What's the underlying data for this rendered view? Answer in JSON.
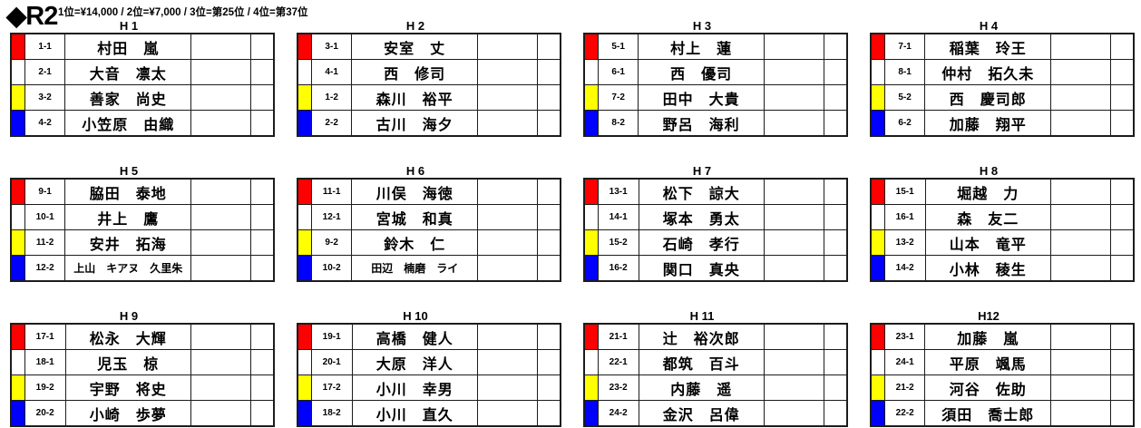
{
  "title": "◆R2",
  "prize_text": "1位=¥14,000 / 2位=¥7,000 / 3位=第25位 / 4位=第37位",
  "colors": {
    "red": "#ff0000",
    "white": "#ffffff",
    "yellow": "#ffff00",
    "blue": "#0000ff"
  },
  "heats": [
    {
      "label": "H 1",
      "rows": [
        {
          "color": "red",
          "seed": "1-1",
          "name": "村田　嵐"
        },
        {
          "color": "white",
          "seed": "2-1",
          "name": "大音　凛太"
        },
        {
          "color": "yellow",
          "seed": "3-2",
          "name": "善家　尚史"
        },
        {
          "color": "blue",
          "seed": "4-2",
          "name": "小笠原　由織"
        }
      ]
    },
    {
      "label": "H 2",
      "rows": [
        {
          "color": "red",
          "seed": "3-1",
          "name": "安室　丈"
        },
        {
          "color": "white",
          "seed": "4-1",
          "name": "西　修司"
        },
        {
          "color": "yellow",
          "seed": "1-2",
          "name": "森川　裕平"
        },
        {
          "color": "blue",
          "seed": "2-2",
          "name": "古川　海夕"
        }
      ]
    },
    {
      "label": "H 3",
      "rows": [
        {
          "color": "red",
          "seed": "5-1",
          "name": "村上　蓮"
        },
        {
          "color": "white",
          "seed": "6-1",
          "name": "西　優司"
        },
        {
          "color": "yellow",
          "seed": "7-2",
          "name": "田中　大貴"
        },
        {
          "color": "blue",
          "seed": "8-2",
          "name": "野呂　海利"
        }
      ]
    },
    {
      "label": "H 4",
      "rows": [
        {
          "color": "red",
          "seed": "7-1",
          "name": "稲葉　玲王"
        },
        {
          "color": "white",
          "seed": "8-1",
          "name": "仲村　拓久未"
        },
        {
          "color": "yellow",
          "seed": "5-2",
          "name": "西　慶司郎"
        },
        {
          "color": "blue",
          "seed": "6-2",
          "name": "加藤　翔平"
        }
      ]
    },
    {
      "label": "H 5",
      "rows": [
        {
          "color": "red",
          "seed": "9-1",
          "name": "脇田　泰地"
        },
        {
          "color": "white",
          "seed": "10-1",
          "name": "井上　鷹"
        },
        {
          "color": "yellow",
          "seed": "11-2",
          "name": "安井　拓海"
        },
        {
          "color": "blue",
          "seed": "12-2",
          "name": "上山　キアヌ　久里朱"
        }
      ]
    },
    {
      "label": "H 6",
      "rows": [
        {
          "color": "red",
          "seed": "11-1",
          "name": "川俣　海徳"
        },
        {
          "color": "white",
          "seed": "12-1",
          "name": "宮城　和真"
        },
        {
          "color": "yellow",
          "seed": "9-2",
          "name": "鈴木　仁"
        },
        {
          "color": "blue",
          "seed": "10-2",
          "name": "田辺　楠磨　ライ"
        }
      ]
    },
    {
      "label": "H 7",
      "rows": [
        {
          "color": "red",
          "seed": "13-1",
          "name": "松下　諒大"
        },
        {
          "color": "white",
          "seed": "14-1",
          "name": "塚本　勇太"
        },
        {
          "color": "yellow",
          "seed": "15-2",
          "name": "石崎　孝行"
        },
        {
          "color": "blue",
          "seed": "16-2",
          "name": "関口　真央"
        }
      ]
    },
    {
      "label": "H 8",
      "rows": [
        {
          "color": "red",
          "seed": "15-1",
          "name": "堀越　力"
        },
        {
          "color": "white",
          "seed": "16-1",
          "name": "森　友二"
        },
        {
          "color": "yellow",
          "seed": "13-2",
          "name": "山本　竜平"
        },
        {
          "color": "blue",
          "seed": "14-2",
          "name": "小林　稜生"
        }
      ]
    },
    {
      "label": "H 9",
      "rows": [
        {
          "color": "red",
          "seed": "17-1",
          "name": "松永　大輝"
        },
        {
          "color": "white",
          "seed": "18-1",
          "name": "児玉　椋"
        },
        {
          "color": "yellow",
          "seed": "19-2",
          "name": "宇野　将史"
        },
        {
          "color": "blue",
          "seed": "20-2",
          "name": "小崎　歩夢"
        }
      ]
    },
    {
      "label": "H 10",
      "rows": [
        {
          "color": "red",
          "seed": "19-1",
          "name": "高橋　健人"
        },
        {
          "color": "white",
          "seed": "20-1",
          "name": "大原　洋人"
        },
        {
          "color": "yellow",
          "seed": "17-2",
          "name": "小川　幸男"
        },
        {
          "color": "blue",
          "seed": "18-2",
          "name": "小川　直久"
        }
      ]
    },
    {
      "label": "H 11",
      "rows": [
        {
          "color": "red",
          "seed": "21-1",
          "name": "辻　裕次郎"
        },
        {
          "color": "white",
          "seed": "22-1",
          "name": "都筑　百斗"
        },
        {
          "color": "yellow",
          "seed": "23-2",
          "name": "内藤　遥"
        },
        {
          "color": "blue",
          "seed": "24-2",
          "name": "金沢　呂偉"
        }
      ]
    },
    {
      "label": "H12",
      "rows": [
        {
          "color": "red",
          "seed": "23-1",
          "name": "加藤　嵐"
        },
        {
          "color": "white",
          "seed": "24-1",
          "name": "平原　颯馬"
        },
        {
          "color": "yellow",
          "seed": "21-2",
          "name": "河谷　佐助"
        },
        {
          "color": "blue",
          "seed": "22-2",
          "name": "須田　喬士郎"
        }
      ]
    }
  ]
}
